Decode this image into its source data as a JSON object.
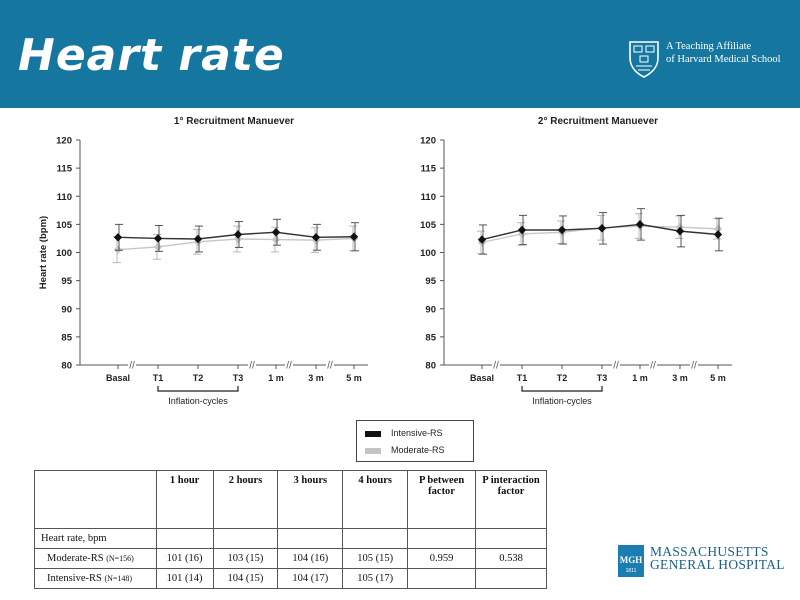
{
  "header": {
    "title": "Heart rate",
    "affiliation_line1": "A Teaching Affiliate",
    "affiliation_line2": "of Harvard Medical School",
    "banner_color": "#1577a0"
  },
  "chart_data": [
    {
      "type": "line",
      "title": "1° Recruitment Manuever",
      "ylabel": "Heart rate (bpm)",
      "xlabel": "",
      "ylim": [
        80,
        120
      ],
      "yticks": [
        80,
        85,
        90,
        95,
        100,
        105,
        110,
        115,
        120
      ],
      "categories": [
        "Basal",
        "T1",
        "T2",
        "T3",
        "1 m",
        "3 m",
        "5 m"
      ],
      "bracket_label": "Inflation-cycles",
      "series": [
        {
          "name": "Intensive-RS",
          "color": "#111111",
          "values": [
            102.7,
            102.5,
            102.4,
            103.2,
            103.6,
            102.7,
            102.8
          ],
          "err": [
            2.3,
            2.3,
            2.3,
            2.3,
            2.3,
            2.3,
            2.5
          ]
        },
        {
          "name": "Moderate-RS",
          "color": "#c4c4c4",
          "values": [
            100.5,
            101.0,
            101.9,
            102.4,
            102.3,
            102.2,
            102.5
          ],
          "err": [
            2.3,
            2.2,
            2.2,
            2.3,
            2.2,
            2.2,
            2.2
          ]
        }
      ]
    },
    {
      "type": "line",
      "title": "2° Recruitment Manuever",
      "ylabel": "",
      "xlabel": "",
      "ylim": [
        80,
        120
      ],
      "yticks": [
        80,
        85,
        90,
        95,
        100,
        105,
        110,
        115,
        120
      ],
      "categories": [
        "Basal",
        "T1",
        "T2",
        "T3",
        "1 m",
        "3 m",
        "5 m"
      ],
      "bracket_label": "Inflation-cycles",
      "series": [
        {
          "name": "Intensive-RS",
          "color": "#111111",
          "values": [
            102.3,
            104.0,
            104.0,
            104.3,
            105.0,
            103.8,
            103.2
          ],
          "err": [
            2.6,
            2.6,
            2.5,
            2.8,
            2.8,
            2.8,
            2.9
          ]
        },
        {
          "name": "Moderate-RS",
          "color": "#c4c4c4",
          "values": [
            101.8,
            103.3,
            103.6,
            104.4,
            104.7,
            104.5,
            104.2
          ],
          "err": [
            2.0,
            2.0,
            2.0,
            2.2,
            2.2,
            2.0,
            1.8
          ]
        }
      ]
    }
  ],
  "legend": [
    {
      "label": "Intensive-RS",
      "color": "#111111"
    },
    {
      "label": "Moderate-RS",
      "color": "#c4c4c4"
    }
  ],
  "table": {
    "headers": [
      "",
      "1 hour",
      "2 hours",
      "3 hours",
      "4 hours",
      "P between factor",
      "P interaction factor"
    ],
    "section_label": "Heart rate, bpm",
    "rows": [
      {
        "label": "Moderate-RS",
        "n": "(N=156)",
        "cells": [
          "101 (16)",
          "103 (15)",
          "104 (16)",
          "105 (15)",
          "0.959",
          "0.538"
        ]
      },
      {
        "label": "Intensive-RS",
        "n": "(N=148)",
        "cells": [
          "101 (14)",
          "104 (15)",
          "104 (17)",
          "105 (17)",
          "",
          ""
        ]
      }
    ]
  },
  "footer": {
    "hospital_line1": "MASSACHUSETTS",
    "hospital_line2": "GENERAL HOSPITAL",
    "logo_text": "MGH",
    "logo_year": "1811",
    "logo_color": "#1a7fb0"
  }
}
